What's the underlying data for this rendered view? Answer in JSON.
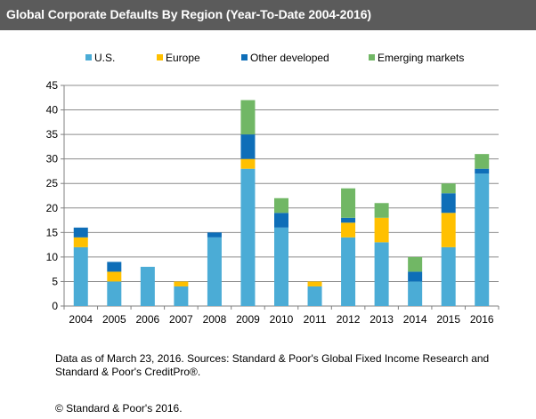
{
  "header": {
    "title": "Global Corporate Defaults By Region (Year-To-Date 2004-2016)"
  },
  "chart_data": {
    "type": "bar",
    "stacked": true,
    "title": "",
    "xlabel": "",
    "ylabel": "",
    "ylim": [
      0,
      45
    ],
    "yticks": [
      0,
      5,
      10,
      15,
      20,
      25,
      30,
      35,
      40,
      45
    ],
    "grid": true,
    "legend_position": "top",
    "categories": [
      "2004",
      "2005",
      "2006",
      "2007",
      "2008",
      "2009",
      "2010",
      "2011",
      "2012",
      "2013",
      "2014",
      "2015",
      "2016"
    ],
    "series": [
      {
        "name": "U.S.",
        "color": "#4bacd6",
        "values": [
          12,
          5,
          8,
          4,
          14,
          28,
          16,
          4,
          14,
          13,
          5,
          12,
          27
        ]
      },
      {
        "name": "Europe",
        "color": "#ffc000",
        "values": [
          2,
          2,
          0,
          1,
          0,
          2,
          0,
          1,
          3,
          5,
          0,
          7,
          0
        ]
      },
      {
        "name": "Other developed",
        "color": "#0e6eb8",
        "values": [
          2,
          2,
          0,
          0,
          1,
          5,
          3,
          0,
          1,
          0,
          2,
          4,
          1
        ]
      },
      {
        "name": "Emerging markets",
        "color": "#71b765",
        "values": [
          0,
          0,
          0,
          0,
          0,
          7,
          3,
          0,
          6,
          3,
          3,
          2,
          3
        ]
      }
    ]
  },
  "footnote": {
    "source": "Data as of March 23, 2016. Sources: Standard & Poor's Global Fixed Income  Research and Standard & Poor's CreditPro®.",
    "copyright": "© Standard & Poor's 2016."
  }
}
